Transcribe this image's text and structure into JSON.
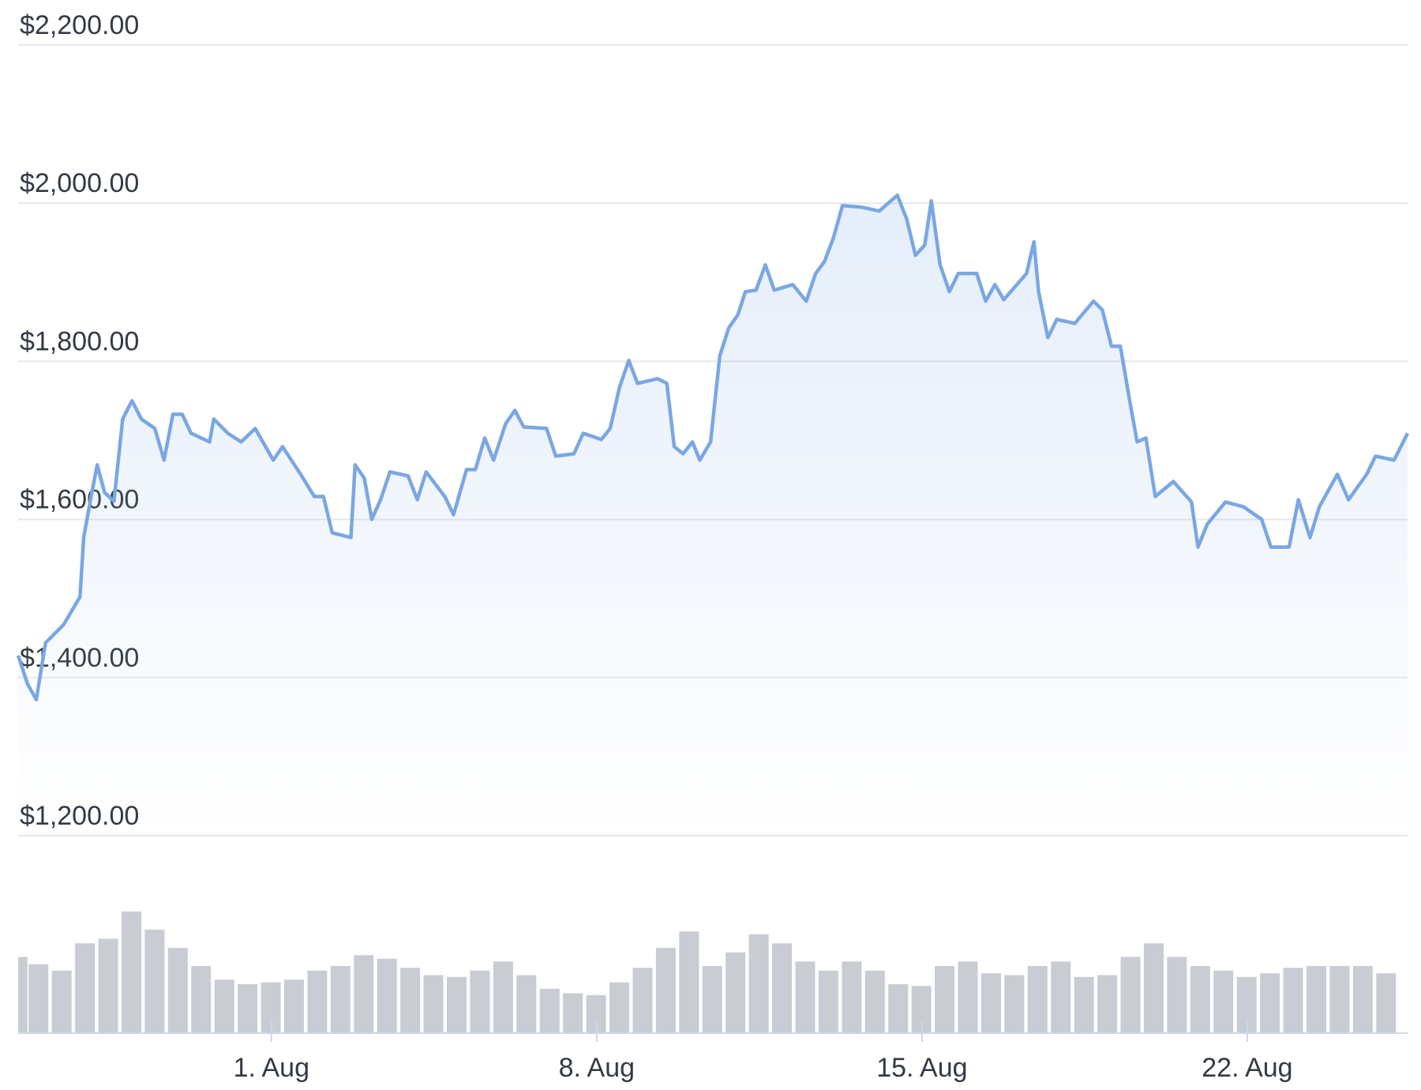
{
  "chart_data": {
    "type": "line",
    "x": [
      -4.45,
      -4.25,
      -4.06,
      -3.86,
      -3.47,
      -3.12,
      -3.04,
      -2.88,
      -2.75,
      -2.59,
      -2.39,
      -2.2,
      -2.0,
      -1.8,
      -1.51,
      -1.31,
      -1.12,
      -0.92,
      -0.73,
      -0.33,
      -0.24,
      0.06,
      0.35,
      0.65,
      1.04,
      1.24,
      1.63,
      1.92,
      2.12,
      2.31,
      2.71,
      2.8,
      3.0,
      3.16,
      3.35,
      3.55,
      3.94,
      4.14,
      4.33,
      4.73,
      4.92,
      5.2,
      5.39,
      5.59,
      5.78,
      6.04,
      6.24,
      6.43,
      6.92,
      7.12,
      7.51,
      7.71,
      8.1,
      8.29,
      8.49,
      8.69,
      8.88,
      9.31,
      9.51,
      9.67,
      9.86,
      10.06,
      10.22,
      10.45,
      10.65,
      10.84,
      11.04,
      11.2,
      11.43,
      11.63,
      11.82,
      12.22,
      12.51,
      12.71,
      12.9,
      13.1,
      13.29,
      13.69,
      14.08,
      14.47,
      14.67,
      14.86,
      15.06,
      15.2,
      15.39,
      15.59,
      15.78,
      16.18,
      16.37,
      16.57,
      16.76,
      17.25,
      17.41,
      17.51,
      17.71,
      17.9,
      18.29,
      18.69,
      18.88,
      19.08,
      19.27,
      19.47,
      19.63,
      19.82,
      20.02,
      20.41,
      20.8,
      20.94,
      21.14,
      21.53,
      21.92,
      22.31,
      22.51,
      22.9,
      23.1,
      23.35,
      23.55,
      23.94,
      24.18,
      24.57,
      24.76,
      25.16,
      25.45
    ],
    "values": [
      1428,
      1392,
      1372,
      1444,
      1467,
      1502,
      1577,
      1629,
      1669,
      1634,
      1623,
      1727,
      1750,
      1727,
      1715,
      1675,
      1733,
      1733,
      1709,
      1698,
      1727,
      1709,
      1698,
      1715,
      1675,
      1692,
      1657,
      1629,
      1629,
      1583,
      1577,
      1669,
      1652,
      1600,
      1625,
      1660,
      1655,
      1625,
      1660,
      1629,
      1606,
      1663,
      1663,
      1703,
      1675,
      1721,
      1738,
      1717,
      1715,
      1680,
      1683,
      1709,
      1701,
      1715,
      1767,
      1801,
      1772,
      1778,
      1772,
      1692,
      1683,
      1698,
      1675,
      1698,
      1807,
      1842,
      1859,
      1888,
      1890,
      1922,
      1890,
      1897,
      1876,
      1911,
      1926,
      1957,
      1997,
      1995,
      1990,
      2010,
      1980,
      1934,
      1947,
      2003,
      1922,
      1888,
      1911,
      1911,
      1876,
      1897,
      1878,
      1911,
      1951,
      1888,
      1830,
      1853,
      1848,
      1876,
      1865,
      1819,
      1819,
      1750,
      1698,
      1703,
      1629,
      1648,
      1622,
      1565,
      1594,
      1622,
      1616,
      1600,
      1565,
      1565,
      1625,
      1577,
      1616,
      1657,
      1625,
      1657,
      1680,
      1675,
      1709
    ],
    "color": "#7aa7e3",
    "xlim": [
      -4.45,
      25.45
    ],
    "xticks": [
      {
        "value": 1,
        "label": "1. Aug"
      },
      {
        "value": 8,
        "label": "8. Aug"
      },
      {
        "value": 15,
        "label": "15. Aug"
      },
      {
        "value": 22,
        "label": "22. Aug"
      }
    ],
    "ylim": [
      1200,
      2200
    ],
    "yticks": [
      {
        "value": 1200,
        "label": "$1,200.00"
      },
      {
        "value": 1400,
        "label": "$1,400.00"
      },
      {
        "value": 1600,
        "label": "$1,600.00"
      },
      {
        "value": 1800,
        "label": "$1,800.00"
      },
      {
        "value": 2000,
        "label": "$2,000.00"
      },
      {
        "value": 2200,
        "label": "$2,200.00"
      }
    ],
    "grid": true,
    "volume": {
      "color": "#c9ccd3",
      "ylim": [
        0,
        140
      ],
      "x": [
        -4.45,
        -4,
        -3.5,
        -3,
        -2.5,
        -2,
        -1.5,
        -1,
        -0.5,
        0,
        0.5,
        1,
        1.5,
        2,
        2.5,
        3,
        3.5,
        4,
        4.5,
        5,
        5.5,
        6,
        6.5,
        7,
        7.5,
        8,
        8.5,
        9,
        9.5,
        10,
        10.5,
        11,
        11.5,
        12,
        12.5,
        13,
        13.5,
        14,
        14.5,
        15,
        15.5,
        16,
        16.5,
        17,
        17.5,
        18,
        18.5,
        19,
        19.5,
        20,
        20.5,
        21,
        21.5,
        22,
        22.5,
        23,
        23.5,
        24,
        24.5,
        25
      ],
      "values": [
        83,
        75,
        68,
        98,
        103,
        133,
        113,
        93,
        73,
        58,
        53,
        55,
        58,
        68,
        73,
        85,
        81,
        71,
        63,
        61,
        68,
        78,
        63,
        48,
        43,
        41,
        55,
        71,
        93,
        111,
        73,
        88,
        108,
        98,
        78,
        68,
        78,
        68,
        53,
        51,
        73,
        78,
        65,
        63,
        73,
        78,
        61,
        63,
        83,
        98,
        83,
        73,
        68,
        61,
        65,
        71,
        73,
        73,
        73,
        65
      ]
    }
  }
}
